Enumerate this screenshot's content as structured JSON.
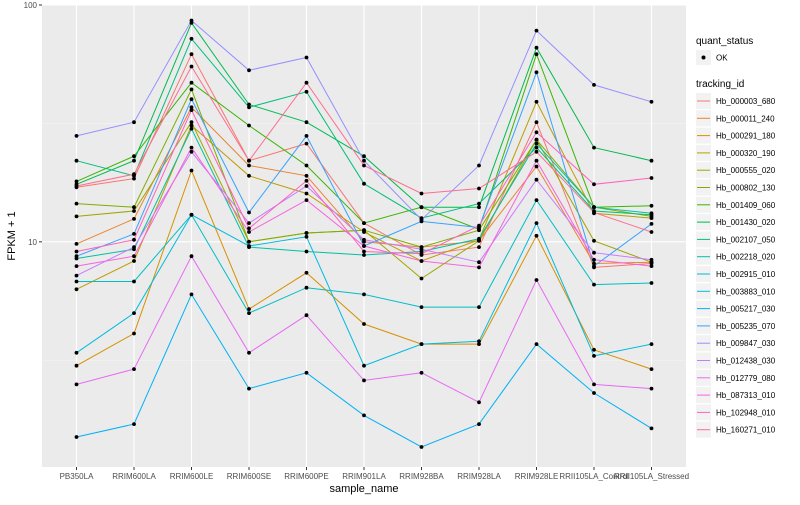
{
  "chart_data": {
    "type": "line",
    "xlabel": "sample_name",
    "ylabel": "FPKM + 1",
    "yscale": "log",
    "ylim": [
      1.12,
      100
    ],
    "yticks": [
      {
        "value": 10,
        "label": "10"
      },
      {
        "value": 100,
        "label": "100"
      }
    ],
    "grid": true,
    "legend_position": "right",
    "categories": [
      "PB350LA",
      "RRIM600LA",
      "RRIM600LE",
      "RRIM600SE",
      "RRIM600PE",
      "RRIM901LA",
      "RRIM928BA",
      "RRIM928LA",
      "RRIM928LE",
      "RRII105LA_Control",
      "RRII105LA_Stressed"
    ],
    "legend_shape": {
      "title": "quant_status",
      "items": [
        "OK"
      ]
    },
    "legend_color_title": "tracking_id",
    "series": [
      {
        "name": "Hb_000003_680",
        "color": "#F8766D",
        "values": [
          17,
          18.5,
          62,
          22,
          26,
          12,
          8.8,
          9.5,
          32,
          7.8,
          8.1
        ]
      },
      {
        "name": "Hb_000011_240",
        "color": "#EA8331",
        "values": [
          9.8,
          12.5,
          37,
          21,
          19,
          10,
          9.5,
          10.1,
          20.8,
          8.1,
          8.2
        ]
      },
      {
        "name": "Hb_000291_180",
        "color": "#D89000",
        "values": [
          3.0,
          4.1,
          20,
          5.2,
          7.4,
          4.5,
          3.7,
          3.7,
          10.6,
          3.5,
          2.9
        ]
      },
      {
        "name": "Hb_000320_190",
        "color": "#C09B00",
        "values": [
          6.3,
          8.3,
          31,
          19,
          16,
          11,
          8.3,
          10.2,
          39,
          13.2,
          12.6
        ]
      },
      {
        "name": "Hb_000555_020",
        "color": "#A3A500",
        "values": [
          12.8,
          13.5,
          32,
          10,
          10.9,
          11.2,
          7,
          10.1,
          27,
          10.1,
          8.2
        ]
      },
      {
        "name": "Hb_000802_130",
        "color": "#7CAE00",
        "values": [
          14.5,
          14,
          44,
          10,
          10.9,
          11.2,
          9.5,
          11.2,
          27,
          14,
          12.8
        ]
      },
      {
        "name": "Hb_001409_060",
        "color": "#39B600",
        "values": [
          18,
          23,
          47,
          31,
          21,
          12,
          14,
          11.3,
          62,
          14,
          14.2
        ]
      },
      {
        "name": "Hb_001430_020",
        "color": "#00BB4E",
        "values": [
          17.5,
          22,
          84,
          38,
          32,
          23,
          14,
          14,
          66,
          25,
          22
        ]
      },
      {
        "name": "Hb_002107_050",
        "color": "#00BF7D",
        "values": [
          22,
          19,
          72,
          37,
          43,
          17.6,
          12.6,
          14.5,
          25,
          13.5,
          13
        ]
      },
      {
        "name": "Hb_002218_020",
        "color": "#00C1A3",
        "values": [
          8.5,
          9.3,
          30,
          9.5,
          9.1,
          8.8,
          9.1,
          10.3,
          26,
          14,
          13.2
        ]
      },
      {
        "name": "Hb_002915_010",
        "color": "#00BFC4",
        "values": [
          6.8,
          6.8,
          13,
          5,
          6.4,
          6,
          5.3,
          5.3,
          15,
          6.6,
          6.7
        ]
      },
      {
        "name": "Hb_003883_010",
        "color": "#00BAE0",
        "values": [
          3.4,
          5,
          13,
          9.6,
          10.5,
          3,
          3.7,
          3.8,
          12,
          3.3,
          3.7
        ]
      },
      {
        "name": "Hb_005217_030",
        "color": "#00B0F6",
        "values": [
          1.5,
          1.7,
          6,
          2.4,
          2.8,
          1.85,
          1.36,
          1.7,
          3.7,
          2.3,
          1.63
        ]
      },
      {
        "name": "Hb_005235_070",
        "color": "#35A2FF",
        "values": [
          8.7,
          10.8,
          40,
          13.3,
          28,
          9.6,
          12.2,
          11.5,
          52,
          7.9,
          11.9
        ]
      },
      {
        "name": "Hb_009847_030",
        "color": "#9590FF",
        "values": [
          28,
          32,
          86,
          53,
          60,
          22,
          12.4,
          21,
          78,
          46,
          39
        ]
      },
      {
        "name": "Hb_012438_030",
        "color": "#C77CFF",
        "values": [
          7.2,
          9.5,
          24,
          12,
          17.2,
          10.2,
          9.3,
          8.2,
          18.3,
          9,
          8.4
        ]
      },
      {
        "name": "Hb_012779_080",
        "color": "#E76BF3",
        "values": [
          2.5,
          2.9,
          8.7,
          3.4,
          4.9,
          2.6,
          2.8,
          2.1,
          6.9,
          2.5,
          2.4
        ]
      },
      {
        "name": "Hb_087313_010",
        "color": "#FA62DB",
        "values": [
          7.9,
          8.7,
          25,
          11,
          15,
          9.6,
          8.3,
          7.8,
          22,
          8.4,
          7.9
        ]
      },
      {
        "name": "Hb_102948_010",
        "color": "#FF62BC",
        "values": [
          9.1,
          10.2,
          36,
          11.4,
          18.1,
          9.1,
          8.9,
          11.7,
          29,
          17.5,
          18.6
        ]
      },
      {
        "name": "Hb_160271_010",
        "color": "#FF6C91",
        "values": [
          17.2,
          19.3,
          55,
          22,
          47,
          21,
          16,
          16.8,
          24,
          13.3,
          11
        ]
      }
    ]
  }
}
